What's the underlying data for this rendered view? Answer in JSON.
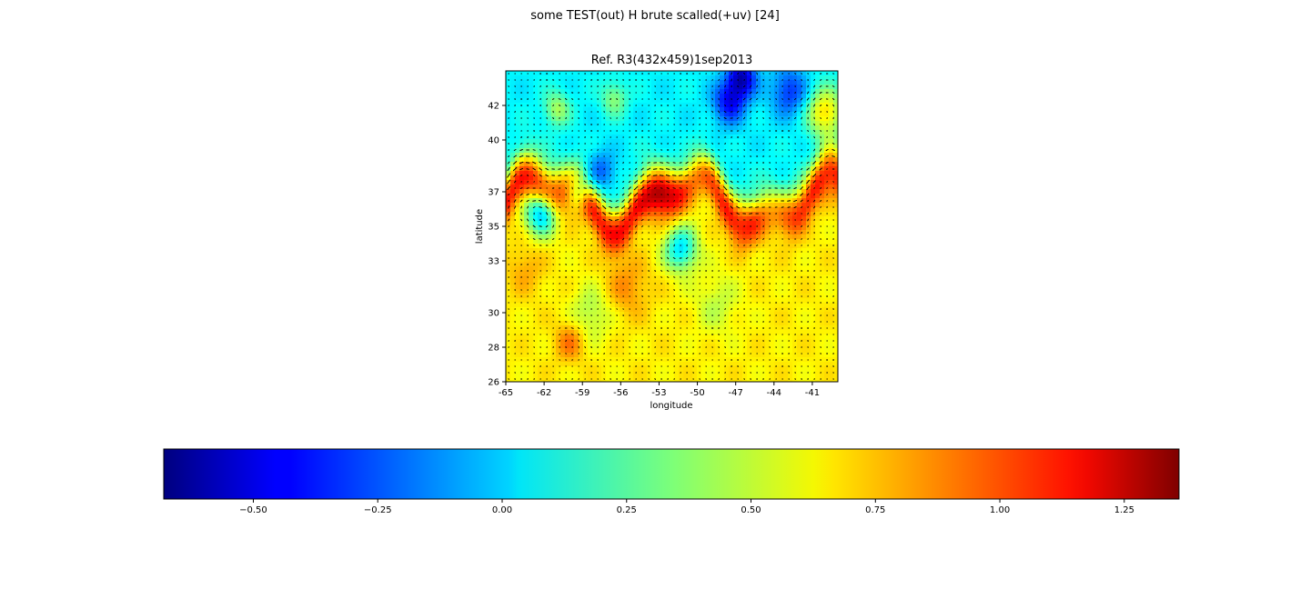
{
  "suptitle": "some TEST(out) H brute scalled(+uv) [24]",
  "chart_data": [
    {
      "type": "heatmap",
      "title": "Ref. R3(432x459)1sep2013",
      "xlabel": "longitude",
      "ylabel": "latitude",
      "xlim": [
        -65,
        -39
      ],
      "ylim": [
        26,
        44
      ],
      "xticks": [
        -65,
        -62,
        -59,
        -56,
        -53,
        -50,
        -47,
        -44,
        -41
      ],
      "xtick_labels": [
        "-65",
        "-62",
        "-59",
        "-56",
        "-53",
        "-50",
        "-47",
        "-44",
        "-41"
      ],
      "yticks": [
        26,
        28,
        30,
        33,
        35,
        37,
        40,
        42
      ],
      "ytick_labels": [
        "26",
        "28",
        "30",
        "33",
        "35",
        "37",
        "40",
        "42"
      ],
      "colormap": "jet",
      "overlay": "velocity quiver arrows (uv)",
      "description_regions": {
        "north_above_38": "low values (blue, around -0.4 to 0.1)",
        "front_35_38": "high values (red/orange, around 0.9 to 1.2)",
        "south_below_33": "mid values (yellow/green, around 0.4 to 0.7)"
      }
    },
    {
      "type": "colorbar",
      "orientation": "horizontal",
      "range": [
        -0.68,
        1.36
      ],
      "ticks": [
        -0.5,
        -0.25,
        0.0,
        0.25,
        0.5,
        0.75,
        1.0,
        1.25
      ],
      "tick_labels": [
        "−0.50",
        "−0.25",
        "0.00",
        "0.25",
        "0.50",
        "0.75",
        "1.00",
        "1.25"
      ],
      "colormap": "jet"
    }
  ]
}
